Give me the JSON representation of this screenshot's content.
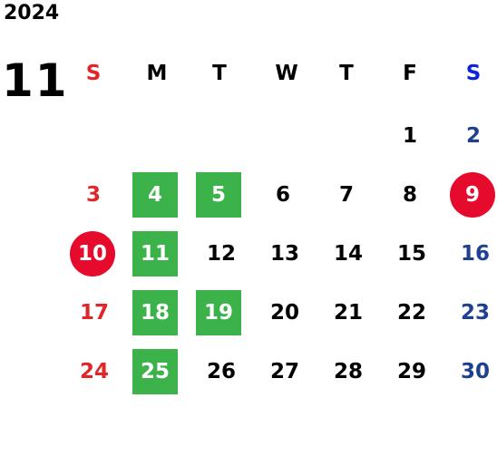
{
  "year": "2024",
  "month": "11",
  "weekdays": [
    "S",
    "M",
    "T",
    "W",
    "T",
    "F",
    "S"
  ],
  "weeks": [
    [
      "",
      "",
      "",
      "",
      "",
      "1",
      "2"
    ],
    [
      "3",
      "4",
      "5",
      "6",
      "7",
      "8",
      "9"
    ],
    [
      "10",
      "11",
      "12",
      "13",
      "14",
      "15",
      "16"
    ],
    [
      "17",
      "18",
      "19",
      "20",
      "21",
      "22",
      "23"
    ],
    [
      "24",
      "25",
      "26",
      "27",
      "28",
      "29",
      "30"
    ]
  ],
  "highlights": {
    "green_days": [
      "4",
      "5",
      "11",
      "18",
      "19",
      "25"
    ],
    "red_circle_days": [
      "9",
      "10"
    ]
  },
  "colors": {
    "sunday": "#e0262a",
    "saturday": "#1f3f8f",
    "saturday_header": "#0a25d6",
    "green": "#3bb34a",
    "red_circle": "#e60a2c"
  }
}
